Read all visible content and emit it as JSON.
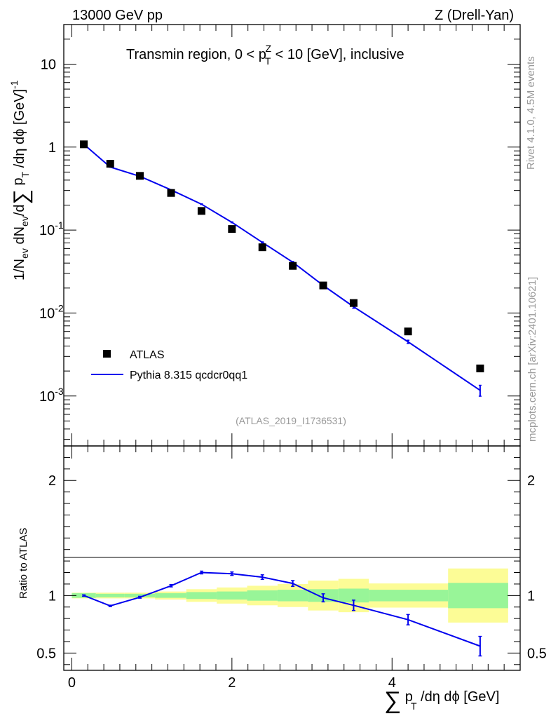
{
  "chart_data": [
    {
      "type": "scatter",
      "panel": "main",
      "title": "Transmin region, 0 < p_T^Z < 10 [GeV], inclusive",
      "top_left_label": "13000 GeV pp",
      "top_right_label": "Z (Drell-Yan)",
      "ylabel": "1/N_ev dN_ev/d∑ p_T /dη dϕ [GeV]^-1",
      "yscale": "log",
      "xlim": [
        -0.1,
        5.6
      ],
      "ylim": [
        0.00025,
        30
      ],
      "ytick_labels": [
        "10^-3",
        "10^-2",
        "10^-1",
        "1",
        "10"
      ],
      "legend_position": "lower-left",
      "analysis_id": "(ATLAS_2019_I1736531)",
      "series": [
        {
          "name": "ATLAS",
          "style": "markers",
          "color": "#000000",
          "x": [
            0.15,
            0.48,
            0.85,
            1.24,
            1.62,
            2.0,
            2.38,
            2.76,
            3.14,
            3.52,
            4.2,
            5.1
          ],
          "y": [
            1.08,
            0.63,
            0.45,
            0.28,
            0.17,
            0.103,
            0.062,
            0.037,
            0.0215,
            0.0132,
            0.006,
            0.00215
          ]
        },
        {
          "name": "Pythia 8.315 qcdcr0qq1",
          "style": "line",
          "color": "#0000ee",
          "x": [
            0.15,
            0.48,
            0.85,
            1.24,
            1.62,
            2.0,
            2.38,
            2.76,
            3.14,
            3.52,
            4.2,
            5.1
          ],
          "y": [
            1.08,
            0.575,
            0.445,
            0.305,
            0.205,
            0.124,
            0.071,
            0.041,
            0.0215,
            0.0119,
            0.0045,
            0.00117
          ],
          "err_rel": [
            0.006,
            0.006,
            0.006,
            0.008,
            0.01,
            0.012,
            0.015,
            0.02,
            0.025,
            0.04,
            0.045,
            0.15
          ]
        }
      ]
    },
    {
      "type": "line",
      "panel": "ratio",
      "ylabel": "Ratio to ATLAS",
      "xlabel": "∑ p_T /dη dϕ [GeV]",
      "xlim": [
        -0.1,
        5.6
      ],
      "ylim": [
        0.35,
        2.3
      ],
      "x_ticks": [
        0,
        2,
        4
      ],
      "y_ticks": [
        0.5,
        1,
        2
      ],
      "y_tick_labels": [
        "0.5",
        "1",
        "2"
      ],
      "x": [
        0.15,
        0.48,
        0.85,
        1.24,
        1.62,
        2.0,
        2.38,
        2.76,
        3.14,
        3.52,
        4.2,
        5.1
      ],
      "ratio": [
        1.0,
        0.91,
        0.985,
        1.085,
        1.2,
        1.19,
        1.16,
        1.105,
        0.98,
        0.915,
        0.79,
        0.56
      ],
      "ratio_err": [
        0.006,
        0.006,
        0.008,
        0.01,
        0.012,
        0.015,
        0.02,
        0.025,
        0.035,
        0.045,
        0.045,
        0.085
      ],
      "band_edges": [
        0.0,
        0.3,
        0.66,
        1.04,
        1.43,
        1.81,
        2.19,
        2.57,
        2.95,
        3.33,
        3.71,
        4.7,
        5.45
      ],
      "band_stat_low": [
        0.98,
        0.985,
        0.985,
        0.98,
        0.97,
        0.965,
        0.955,
        0.95,
        0.945,
        0.94,
        0.95,
        0.89
      ],
      "band_stat_high": [
        1.02,
        1.015,
        1.015,
        1.02,
        1.03,
        1.035,
        1.045,
        1.05,
        1.055,
        1.06,
        1.05,
        1.11
      ],
      "band_tot_low": [
        0.975,
        0.975,
        0.975,
        0.965,
        0.945,
        0.93,
        0.915,
        0.9,
        0.87,
        0.855,
        0.895,
        0.765
      ],
      "band_tot_high": [
        1.025,
        1.025,
        1.025,
        1.035,
        1.055,
        1.07,
        1.085,
        1.1,
        1.13,
        1.145,
        1.105,
        1.235
      ],
      "stat_color": "#98f598",
      "total_color": "#fcfc96"
    }
  ],
  "side_labels": {
    "rivet": "Rivet 4.1.0,  4.5M events",
    "mcplots": "mcplots.cern.ch [arXiv:2401.10621]"
  }
}
